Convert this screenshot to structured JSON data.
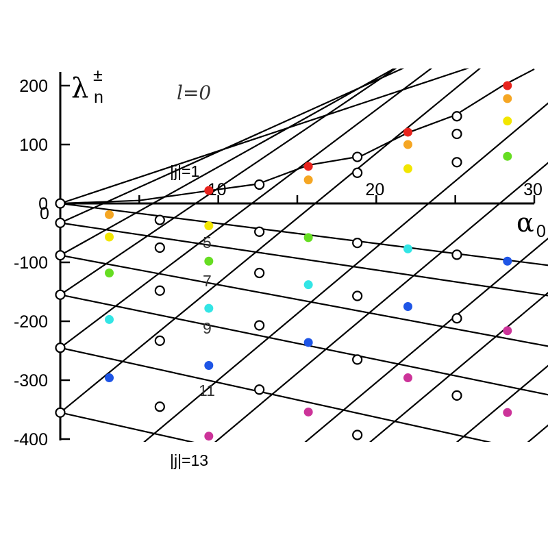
{
  "chart_data": {
    "type": "line",
    "title": "l=0",
    "xlabel": "α0",
    "ylabel": "λn±",
    "xlim": [
      0,
      30
    ],
    "ylim": [
      -400,
      200
    ],
    "x_ticks": [
      10,
      20,
      30
    ],
    "y_ticks": [
      200,
      100,
      0,
      -100,
      -200,
      -300,
      -400
    ],
    "grid": false,
    "annotations": [
      "|j|=1",
      "5",
      "7",
      "9",
      "11",
      "|j|=13"
    ],
    "families": {
      "rising_lines": {
        "description": "lambda = alpha*m - c",
        "start_points": [
          [
            0,
            0
          ],
          [
            0,
            -33
          ],
          [
            0,
            -88
          ],
          [
            0,
            -155
          ],
          [
            0,
            -245
          ],
          [
            0,
            -355
          ]
        ],
        "slopes": [
          8.9,
          12.1,
          15.0,
          18.1,
          20.2,
          22.0
        ]
      },
      "falling_lines": {
        "start_points": [
          [
            0,
            0
          ],
          [
            0,
            -33
          ],
          [
            0,
            -88
          ],
          [
            0,
            -155
          ],
          [
            0,
            -245
          ],
          [
            0,
            -355
          ]
        ],
        "slopes": [
          -3.4,
          -4.0,
          -5.0,
          -5.5,
          -5.9,
          -6.0
        ]
      }
    },
    "upper_curve": [
      [
        0,
        0
      ],
      [
        5,
        5
      ],
      [
        9.5,
        22
      ],
      [
        12.5,
        33
      ],
      [
        15.7,
        65
      ],
      [
        19,
        80
      ],
      [
        22,
        120
      ],
      [
        25,
        150
      ],
      [
        28,
        200
      ],
      [
        30,
        228
      ]
    ],
    "white_points": [
      [
        0,
        0
      ],
      [
        0,
        -33
      ],
      [
        0,
        -88
      ],
      [
        0,
        -155
      ],
      [
        0,
        -245
      ],
      [
        0,
        -355
      ],
      [
        6.3,
        -28
      ],
      [
        6.3,
        -75
      ],
      [
        6.3,
        -148
      ],
      [
        6.3,
        -233
      ],
      [
        6.3,
        -345
      ],
      [
        12.6,
        32
      ],
      [
        12.6,
        -48
      ],
      [
        12.6,
        -118
      ],
      [
        12.6,
        -207
      ],
      [
        12.6,
        -316
      ],
      [
        18.8,
        52
      ],
      [
        18.8,
        79
      ],
      [
        18.8,
        -67
      ],
      [
        18.8,
        -157
      ],
      [
        18.8,
        -265
      ],
      [
        18.8,
        -393
      ],
      [
        25.1,
        70
      ],
      [
        25.1,
        118
      ],
      [
        25.1,
        148
      ],
      [
        25.1,
        -87
      ],
      [
        25.1,
        -195
      ],
      [
        25.1,
        -326
      ]
    ],
    "colored_points": [
      {
        "x": 3.1,
        "y": -19,
        "color": "#F5A623"
      },
      {
        "x": 3.1,
        "y": -57,
        "color": "#F2E600"
      },
      {
        "x": 3.1,
        "y": -118,
        "color": "#66DD22"
      },
      {
        "x": 3.1,
        "y": -197,
        "color": "#33E5E5"
      },
      {
        "x": 3.1,
        "y": -296,
        "color": "#1E55E6"
      },
      {
        "x": 9.4,
        "y": 22,
        "color": "#E8231D"
      },
      {
        "x": 9.4,
        "y": -38,
        "color": "#F2E600"
      },
      {
        "x": 9.4,
        "y": -98,
        "color": "#66DD22"
      },
      {
        "x": 9.4,
        "y": -178,
        "color": "#33E5E5"
      },
      {
        "x": 9.4,
        "y": -275,
        "color": "#1E55E6"
      },
      {
        "x": 9.4,
        "y": -395,
        "color": "#CC3399"
      },
      {
        "x": 15.7,
        "y": 63,
        "color": "#E8231D"
      },
      {
        "x": 15.7,
        "y": 40,
        "color": "#F5A623"
      },
      {
        "x": 15.7,
        "y": -58,
        "color": "#66DD22"
      },
      {
        "x": 15.7,
        "y": -138,
        "color": "#33E5E5"
      },
      {
        "x": 15.7,
        "y": -236,
        "color": "#1E55E6"
      },
      {
        "x": 15.7,
        "y": -354,
        "color": "#CC3399"
      },
      {
        "x": 22.0,
        "y": 121,
        "color": "#E8231D"
      },
      {
        "x": 22.0,
        "y": 100,
        "color": "#F5A623"
      },
      {
        "x": 22.0,
        "y": 59,
        "color": "#F2E600"
      },
      {
        "x": 22.0,
        "y": -77,
        "color": "#33E5E5"
      },
      {
        "x": 22.0,
        "y": -175,
        "color": "#1E55E6"
      },
      {
        "x": 22.0,
        "y": -296,
        "color": "#CC3399"
      },
      {
        "x": 28.3,
        "y": 200,
        "color": "#E8231D"
      },
      {
        "x": 28.3,
        "y": 178,
        "color": "#F5A623"
      },
      {
        "x": 28.3,
        "y": 140,
        "color": "#F2E600"
      },
      {
        "x": 28.3,
        "y": 80,
        "color": "#66DD22"
      },
      {
        "x": 28.3,
        "y": -98,
        "color": "#1E55E6"
      },
      {
        "x": 28.3,
        "y": -216,
        "color": "#CC3399"
      },
      {
        "x": 28.3,
        "y": -355,
        "color": "#CC3399"
      }
    ]
  }
}
